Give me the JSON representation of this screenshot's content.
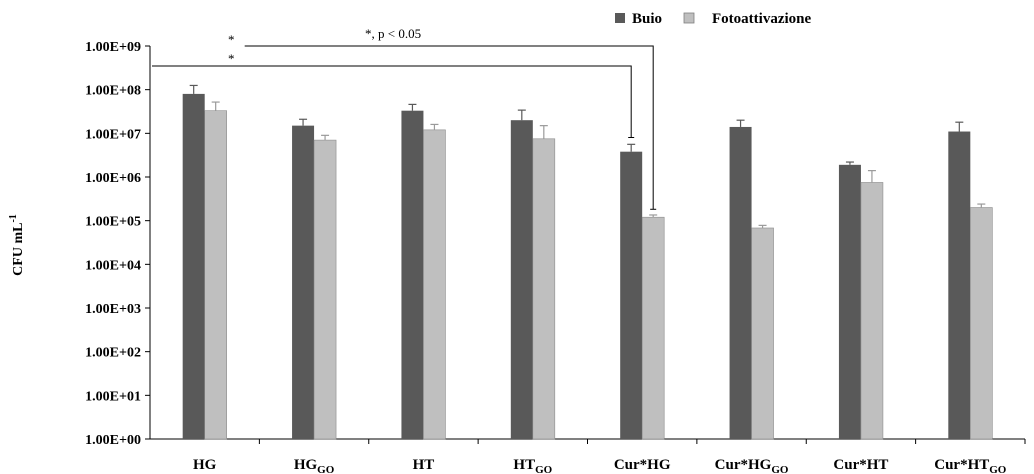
{
  "chart_data": {
    "type": "bar",
    "log_scale": true,
    "grid": false,
    "legend_position": "top-right",
    "ylim": [
      1,
      1000000000
    ],
    "ylabel": "CFU mL",
    "ylabel_exp": "-1",
    "y_tick_labels": [
      "1.00E+00",
      "1.00E+01",
      "1.00E+02",
      "1.00E+03",
      "1.00E+04",
      "1.00E+05",
      "1.00E+06",
      "1.00E+07",
      "1.00E+08",
      "1.00E+09"
    ],
    "categories": [
      {
        "main": "HG",
        "sub": ""
      },
      {
        "main": "HG",
        "sub": "GO"
      },
      {
        "main": "HT",
        "sub": ""
      },
      {
        "main": "HT",
        "sub": "GO"
      },
      {
        "main": "Cur*HG",
        "sub": ""
      },
      {
        "main": "Cur*HG",
        "sub": "GO"
      },
      {
        "main": "Cur*HT",
        "sub": ""
      },
      {
        "main": "Cur*HT",
        "sub": "GO"
      }
    ],
    "series": [
      {
        "name": "Buio",
        "color": "#595959",
        "values": [
          80000000,
          15000000,
          33000000,
          20000000,
          3800000,
          14000000,
          1900000,
          11000000
        ],
        "errors": [
          125000000,
          21000000,
          46000000,
          34000000,
          5600000,
          20000000,
          2200000,
          18000000
        ]
      },
      {
        "name": "Fotoattivazione",
        "color": "#bfbfbf",
        "values": [
          33000000,
          7000000,
          12000000,
          7500000,
          120000,
          68000,
          750000,
          200000
        ],
        "errors": [
          52000000,
          9000000,
          16000000,
          15000000,
          135000,
          78000,
          1400000,
          240000
        ]
      }
    ],
    "annotations": [
      {
        "text": "*",
        "from": 1,
        "to": 5
      },
      {
        "text": "*, p < 0.05",
        "from": 1,
        "to": 5
      },
      {
        "text": "*",
        "from": 0,
        "to": 4
      }
    ]
  }
}
